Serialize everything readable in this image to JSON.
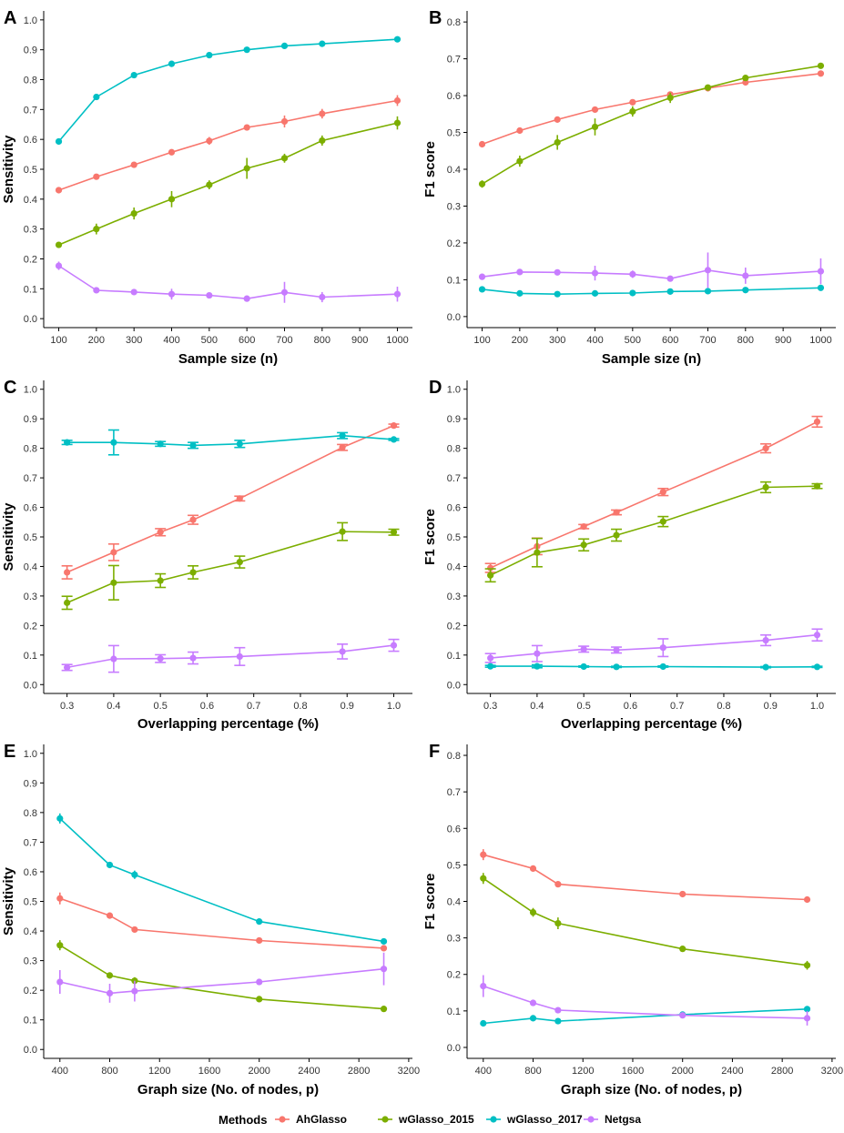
{
  "legend": {
    "title": "Methods",
    "items": [
      {
        "name": "AhGlasso",
        "color": "#F8766D"
      },
      {
        "name": "wGlasso_2015",
        "color": "#7CAE00"
      },
      {
        "name": "wGlasso_2017",
        "color": "#00BFC4"
      },
      {
        "name": "Netgsa",
        "color": "#C77CFF"
      }
    ]
  },
  "chart_data": [
    {
      "panel": "A",
      "type": "line",
      "xlabel": "Sample size (n)",
      "ylabel": "Sensitivity",
      "xlim": [
        60,
        1040
      ],
      "ylim": [
        -0.03,
        1.03
      ],
      "xticks": [
        100,
        200,
        300,
        400,
        500,
        600,
        700,
        800,
        900,
        1000
      ],
      "yticks": [
        0.0,
        0.1,
        0.2,
        0.3,
        0.4,
        0.5,
        0.6,
        0.7,
        0.8,
        0.9,
        1.0
      ],
      "x": [
        100,
        200,
        300,
        400,
        500,
        600,
        700,
        800,
        900,
        1000
      ],
      "error_style": "bar",
      "series": [
        {
          "name": "AhGlasso",
          "values": [
            0.43,
            0.475,
            0.515,
            0.557,
            0.595,
            0.64,
            0.66,
            0.686,
            null,
            0.73
          ],
          "errors": [
            0,
            0,
            0,
            0.01,
            0.013,
            0,
            0.02,
            0.016,
            null,
            0.018
          ]
        },
        {
          "name": "wGlasso_2015",
          "values": [
            0.247,
            0.3,
            0.352,
            0.4,
            0.448,
            0.503,
            0.537,
            0.596,
            null,
            0.655
          ],
          "errors": [
            0,
            0.018,
            0.02,
            0.027,
            0.015,
            0.035,
            0.015,
            0.017,
            null,
            0.022
          ]
        },
        {
          "name": "wGlasso_2017",
          "values": [
            0.593,
            0.742,
            0.815,
            0.853,
            0.882,
            0.9,
            0.913,
            0.92,
            null,
            0.935
          ],
          "errors": [
            0,
            0,
            0,
            0,
            0,
            0,
            0,
            0,
            null,
            0
          ]
        },
        {
          "name": "Netgsa",
          "values": [
            0.177,
            0.095,
            0.089,
            0.082,
            0.078,
            0.067,
            0.088,
            0.072,
            null,
            0.082
          ],
          "errors": [
            0.014,
            0,
            0.006,
            0.018,
            0.005,
            0.005,
            0.035,
            0.017,
            null,
            0.025
          ]
        }
      ]
    },
    {
      "panel": "B",
      "type": "line",
      "xlabel": "Sample size (n)",
      "ylabel": "F1 score",
      "xlim": [
        60,
        1040
      ],
      "ylim": [
        -0.03,
        0.83
      ],
      "xticks": [
        100,
        200,
        300,
        400,
        500,
        600,
        700,
        800,
        900,
        1000
      ],
      "yticks": [
        0.0,
        0.1,
        0.2,
        0.3,
        0.4,
        0.5,
        0.6,
        0.7,
        0.8
      ],
      "x": [
        100,
        200,
        300,
        400,
        500,
        600,
        700,
        800,
        900,
        1000
      ],
      "error_style": "bar",
      "series": [
        {
          "name": "AhGlasso",
          "values": [
            0.468,
            0.505,
            0.535,
            0.562,
            0.582,
            0.603,
            0.62,
            0.636,
            null,
            0.66
          ],
          "errors": [
            0,
            0,
            0,
            0,
            0,
            0,
            0,
            0,
            null,
            0
          ]
        },
        {
          "name": "wGlasso_2015",
          "values": [
            0.36,
            0.422,
            0.473,
            0.515,
            0.557,
            0.594,
            0.622,
            0.648,
            null,
            0.681
          ],
          "errors": [
            0.01,
            0.015,
            0.02,
            0.023,
            0.014,
            0.014,
            0,
            0,
            null,
            0
          ]
        },
        {
          "name": "wGlasso_2017",
          "values": [
            0.074,
            0.063,
            0.061,
            0.063,
            0.064,
            0.068,
            0.069,
            0.072,
            null,
            0.078
          ],
          "errors": [
            0,
            0,
            0,
            0,
            0,
            0,
            0,
            0,
            null,
            0
          ]
        },
        {
          "name": "Netgsa",
          "values": [
            0.108,
            0.121,
            0.12,
            0.118,
            0.115,
            0.103,
            0.126,
            0.111,
            null,
            0.123
          ],
          "errors": [
            0,
            0,
            0,
            0.02,
            0.01,
            0.008,
            0.048,
            0.022,
            null,
            0.035
          ]
        }
      ]
    },
    {
      "panel": "C",
      "type": "line",
      "xlabel": "Overlapping percentage (%)",
      "ylabel": "Sensitivity",
      "xlim": [
        0.25,
        1.04
      ],
      "ylim": [
        -0.03,
        1.03
      ],
      "xticks": [
        0.3,
        0.4,
        0.5,
        0.6,
        0.7,
        0.8,
        0.9,
        1.0
      ],
      "yticks": [
        0.0,
        0.1,
        0.2,
        0.3,
        0.4,
        0.5,
        0.6,
        0.7,
        0.8,
        0.9,
        1.0
      ],
      "x": [
        0.3,
        0.4,
        0.5,
        0.57,
        0.67,
        0.89,
        1.0
      ],
      "error_style": "capped",
      "series": [
        {
          "name": "AhGlasso",
          "values": [
            0.38,
            0.448,
            0.516,
            0.558,
            0.63,
            0.803,
            0.877
          ],
          "errors": [
            0.022,
            0.028,
            0.012,
            0.015,
            0.008,
            0.01,
            0.005
          ]
        },
        {
          "name": "wGlasso_2015",
          "values": [
            0.277,
            0.345,
            0.352,
            0.38,
            0.415,
            0.518,
            0.516
          ],
          "errors": [
            0.022,
            0.058,
            0.023,
            0.022,
            0.02,
            0.03,
            0.01
          ]
        },
        {
          "name": "wGlasso_2017",
          "values": [
            0.82,
            0.82,
            0.815,
            0.81,
            0.815,
            0.843,
            0.83
          ],
          "errors": [
            0.007,
            0.042,
            0.008,
            0.01,
            0.012,
            0.01,
            0.003
          ]
        },
        {
          "name": "Netgsa",
          "values": [
            0.058,
            0.087,
            0.088,
            0.09,
            0.095,
            0.112,
            0.133
          ],
          "errors": [
            0.01,
            0.045,
            0.013,
            0.02,
            0.03,
            0.025,
            0.02
          ]
        }
      ]
    },
    {
      "panel": "D",
      "type": "line",
      "xlabel": "Overlapping percentage (%)",
      "ylabel": "F1 score",
      "xlim": [
        0.25,
        1.04
      ],
      "ylim": [
        -0.03,
        1.03
      ],
      "xticks": [
        0.3,
        0.4,
        0.5,
        0.6,
        0.7,
        0.8,
        0.9,
        1.0
      ],
      "yticks": [
        0.0,
        0.1,
        0.2,
        0.3,
        0.4,
        0.5,
        0.6,
        0.7,
        0.8,
        0.9,
        1.0
      ],
      "x": [
        0.3,
        0.4,
        0.5,
        0.57,
        0.67,
        0.89,
        1.0
      ],
      "error_style": "capped",
      "series": [
        {
          "name": "AhGlasso",
          "values": [
            0.395,
            0.468,
            0.535,
            0.583,
            0.652,
            0.8,
            0.89
          ],
          "errors": [
            0.015,
            0.028,
            0.007,
            0.008,
            0.012,
            0.015,
            0.018
          ]
        },
        {
          "name": "wGlasso_2015",
          "values": [
            0.37,
            0.447,
            0.473,
            0.506,
            0.552,
            0.668,
            0.672
          ],
          "errors": [
            0.022,
            0.048,
            0.02,
            0.02,
            0.017,
            0.018,
            0.008
          ]
        },
        {
          "name": "wGlasso_2017",
          "values": [
            0.062,
            0.062,
            0.061,
            0.06,
            0.061,
            0.059,
            0.06
          ],
          "errors": [
            0.003,
            0.005,
            0.002,
            0.002,
            0.002,
            0.002,
            0.002
          ]
        },
        {
          "name": "Netgsa",
          "values": [
            0.09,
            0.105,
            0.12,
            0.117,
            0.125,
            0.15,
            0.168
          ],
          "errors": [
            0.015,
            0.027,
            0.01,
            0.01,
            0.03,
            0.018,
            0.02
          ]
        }
      ]
    },
    {
      "panel": "E",
      "type": "line",
      "xlabel": "Graph size (No. of nodes, p)",
      "ylabel": "Sensitivity",
      "xlim": [
        270,
        3230
      ],
      "ylim": [
        -0.03,
        1.03
      ],
      "xticks": [
        400,
        800,
        1200,
        1600,
        2000,
        2400,
        2800,
        3200
      ],
      "yticks": [
        0.0,
        0.1,
        0.2,
        0.3,
        0.4,
        0.5,
        0.6,
        0.7,
        0.8,
        0.9,
        1.0
      ],
      "x": [
        400,
        800,
        1000,
        2000,
        3000
      ],
      "error_style": "bar",
      "series": [
        {
          "name": "AhGlasso",
          "values": [
            0.51,
            0.452,
            0.405,
            0.368,
            0.342
          ],
          "errors": [
            0.02,
            0,
            0,
            0,
            0
          ]
        },
        {
          "name": "wGlasso_2015",
          "values": [
            0.352,
            0.25,
            0.232,
            0.17,
            0.137
          ],
          "errors": [
            0.017,
            0,
            0.012,
            0,
            0
          ]
        },
        {
          "name": "wGlasso_2017",
          "values": [
            0.78,
            0.623,
            0.59,
            0.432,
            0.365
          ],
          "errors": [
            0.017,
            0,
            0.014,
            0,
            0
          ]
        },
        {
          "name": "Netgsa",
          "values": [
            0.228,
            0.19,
            0.197,
            0.228,
            0.272
          ],
          "errors": [
            0.04,
            0.032,
            0.035,
            0,
            0.055
          ]
        }
      ]
    },
    {
      "panel": "F",
      "type": "line",
      "xlabel": "Graph size (No. of nodes, p)",
      "ylabel": "F1 score",
      "xlim": [
        270,
        3230
      ],
      "ylim": [
        -0.03,
        0.83
      ],
      "xticks": [
        400,
        800,
        1200,
        1600,
        2000,
        2400,
        2800,
        3200
      ],
      "yticks": [
        0.0,
        0.1,
        0.2,
        0.3,
        0.4,
        0.5,
        0.6,
        0.7,
        0.8
      ],
      "x": [
        400,
        800,
        1000,
        2000,
        3000
      ],
      "error_style": "bar",
      "series": [
        {
          "name": "AhGlasso",
          "values": [
            0.528,
            0.49,
            0.447,
            0.42,
            0.405
          ],
          "errors": [
            0.015,
            0,
            0,
            0,
            0
          ]
        },
        {
          "name": "wGlasso_2015",
          "values": [
            0.463,
            0.37,
            0.34,
            0.27,
            0.225
          ],
          "errors": [
            0.015,
            0.012,
            0.016,
            0,
            0.012
          ]
        },
        {
          "name": "wGlasso_2017",
          "values": [
            0.066,
            0.08,
            0.072,
            0.09,
            0.105
          ],
          "errors": [
            0,
            0,
            0,
            0,
            0
          ]
        },
        {
          "name": "Netgsa",
          "values": [
            0.168,
            0.122,
            0.102,
            0.088,
            0.08
          ],
          "errors": [
            0.03,
            0,
            0,
            0,
            0.02
          ]
        }
      ]
    }
  ]
}
